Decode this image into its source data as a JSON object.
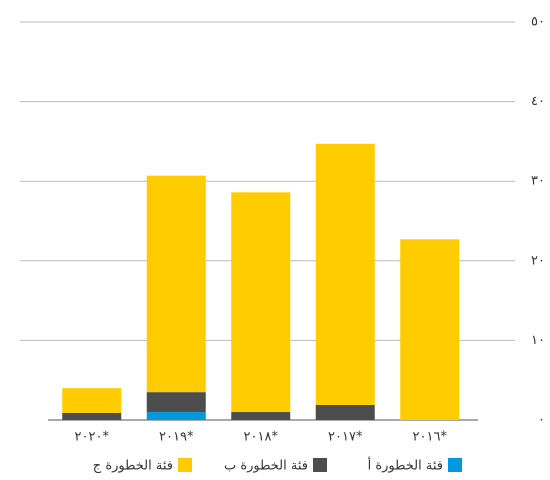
{
  "chart_data": {
    "type": "stacked_bar",
    "categories": [
      "٢٠١٦*",
      "٢٠١٧*",
      "٢٠١٨*",
      "٢٠١٩*",
      "٢٠٢٠*"
    ],
    "series": [
      {
        "name": "فئة الخطورة أ",
        "color": "#0099dd",
        "values": [
          0,
          0,
          0,
          1.0,
          0
        ]
      },
      {
        "name": "فئة الخطورة ب",
        "color": "#4d4d4d",
        "values": [
          0,
          1.9,
          1.0,
          2.5,
          0.9
        ]
      },
      {
        "name": "فئة الخطورة ج",
        "color": "#ffcc00",
        "values": [
          22.7,
          32.8,
          27.6,
          27.2,
          3.1
        ]
      }
    ],
    "ylim": [
      0,
      50
    ],
    "yticks": [
      {
        "value": 0,
        "label": "٠"
      },
      {
        "value": 10,
        "label": "١٠"
      },
      {
        "value": 20,
        "label": "٢٠"
      },
      {
        "value": 30,
        "label": "٣٠"
      },
      {
        "value": 40,
        "label": "٤٠"
      },
      {
        "value": 50,
        "label": "٥٠"
      }
    ],
    "grid": true
  }
}
